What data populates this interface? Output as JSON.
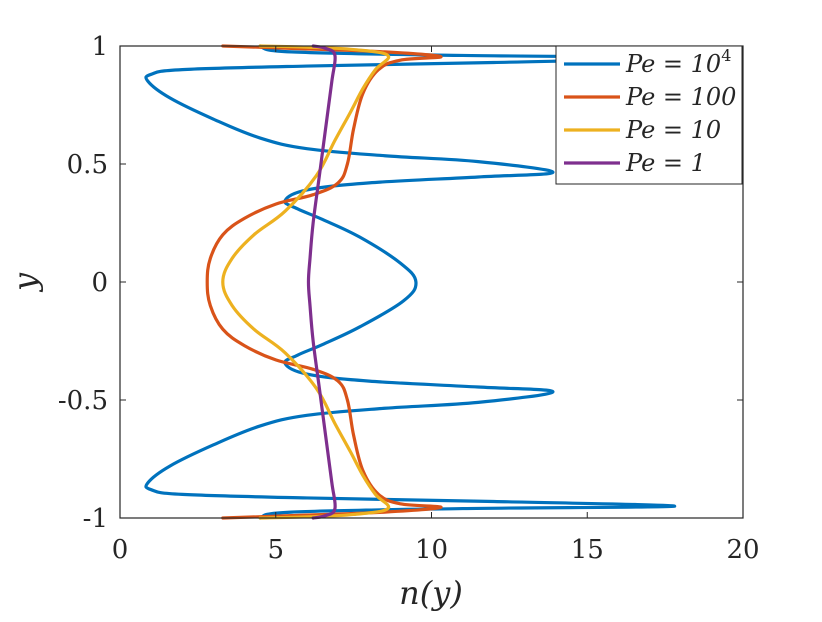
{
  "chart_data": {
    "type": "line",
    "xlabel": "n(y)",
    "ylabel": "y",
    "xlim": [
      0,
      20
    ],
    "ylim": [
      -1,
      1
    ],
    "xticks": [
      0,
      5,
      10,
      15,
      20
    ],
    "yticks": [
      1,
      0.5,
      0,
      -0.5,
      -1
    ],
    "ytick_labels": [
      "1",
      "0.5",
      "0",
      "-0.5",
      "-1"
    ],
    "grid": false,
    "legend_position": "top-right",
    "series": [
      {
        "name": "Pe = 10^4",
        "label_main": "Pe = 10",
        "label_sup": "4",
        "color": "#0072BD",
        "points": [
          [
            4.5,
            1.0
          ],
          [
            5.5,
            0.975
          ],
          [
            11,
            0.96
          ],
          [
            17.8,
            0.95
          ],
          [
            12,
            0.93
          ],
          [
            6,
            0.915
          ],
          [
            2,
            0.9
          ],
          [
            1.0,
            0.88
          ],
          [
            0.9,
            0.85
          ],
          [
            1.6,
            0.78
          ],
          [
            3,
            0.69
          ],
          [
            4.5,
            0.61
          ],
          [
            6,
            0.565
          ],
          [
            8.5,
            0.535
          ],
          [
            11.5,
            0.51
          ],
          [
            13.9,
            0.465
          ],
          [
            11.5,
            0.445
          ],
          [
            8,
            0.42
          ],
          [
            6,
            0.39
          ],
          [
            5.3,
            0.345
          ],
          [
            5.7,
            0.31
          ],
          [
            6.5,
            0.265
          ],
          [
            7.7,
            0.19
          ],
          [
            9.0,
            0.08
          ],
          [
            9.5,
            0.0
          ],
          [
            9.1,
            -0.08
          ],
          [
            7.7,
            -0.19
          ],
          [
            6.5,
            -0.265
          ],
          [
            5.7,
            -0.31
          ],
          [
            5.3,
            -0.345
          ],
          [
            6,
            -0.39
          ],
          [
            8,
            -0.42
          ],
          [
            11.5,
            -0.445
          ],
          [
            13.9,
            -0.465
          ],
          [
            11.5,
            -0.51
          ],
          [
            8.5,
            -0.535
          ],
          [
            6,
            -0.565
          ],
          [
            4.5,
            -0.61
          ],
          [
            3,
            -0.69
          ],
          [
            1.6,
            -0.78
          ],
          [
            0.9,
            -0.85
          ],
          [
            1.0,
            -0.88
          ],
          [
            2,
            -0.9
          ],
          [
            6,
            -0.915
          ],
          [
            12,
            -0.93
          ],
          [
            17.8,
            -0.95
          ],
          [
            11,
            -0.96
          ],
          [
            5.5,
            -0.975
          ],
          [
            4.5,
            -1.0
          ]
        ]
      },
      {
        "name": "Pe = 100",
        "label_main": "Pe = 100",
        "color": "#D95319",
        "points": [
          [
            3.3,
            1.0
          ],
          [
            5.5,
            0.99
          ],
          [
            8.5,
            0.975
          ],
          [
            10.3,
            0.955
          ],
          [
            9,
            0.94
          ],
          [
            8.3,
            0.9
          ],
          [
            7.8,
            0.8
          ],
          [
            7.5,
            0.65
          ],
          [
            7.3,
            0.5
          ],
          [
            7,
            0.42
          ],
          [
            6.2,
            0.37
          ],
          [
            5,
            0.33
          ],
          [
            4,
            0.27
          ],
          [
            3.3,
            0.2
          ],
          [
            2.9,
            0.1
          ],
          [
            2.8,
            0.0
          ],
          [
            2.9,
            -0.1
          ],
          [
            3.3,
            -0.2
          ],
          [
            4,
            -0.27
          ],
          [
            5,
            -0.33
          ],
          [
            6.2,
            -0.37
          ],
          [
            7,
            -0.42
          ],
          [
            7.3,
            -0.5
          ],
          [
            7.5,
            -0.65
          ],
          [
            7.8,
            -0.8
          ],
          [
            8.3,
            -0.9
          ],
          [
            9,
            -0.94
          ],
          [
            10.3,
            -0.955
          ],
          [
            8.5,
            -0.975
          ],
          [
            5.5,
            -0.99
          ],
          [
            3.3,
            -1.0
          ]
        ]
      },
      {
        "name": "Pe = 10",
        "label_main": "Pe = 10",
        "color": "#EDB120",
        "points": [
          [
            4.5,
            1.0
          ],
          [
            6,
            0.995
          ],
          [
            7.5,
            0.985
          ],
          [
            8.6,
            0.96
          ],
          [
            8.2,
            0.9
          ],
          [
            7.8,
            0.82
          ],
          [
            7.4,
            0.72
          ],
          [
            6.9,
            0.6
          ],
          [
            6.3,
            0.45
          ],
          [
            5.3,
            0.3
          ],
          [
            4.3,
            0.2
          ],
          [
            3.6,
            0.1
          ],
          [
            3.3,
            0.0
          ],
          [
            3.6,
            -0.1
          ],
          [
            4.3,
            -0.2
          ],
          [
            5.3,
            -0.3
          ],
          [
            6.3,
            -0.45
          ],
          [
            6.9,
            -0.6
          ],
          [
            7.4,
            -0.72
          ],
          [
            7.8,
            -0.82
          ],
          [
            8.2,
            -0.9
          ],
          [
            8.6,
            -0.96
          ],
          [
            7.5,
            -0.985
          ],
          [
            6,
            -0.995
          ],
          [
            4.5,
            -1.0
          ]
        ]
      },
      {
        "name": "Pe = 1",
        "label_main": "Pe = 1",
        "color": "#7E2F8E",
        "points": [
          [
            6.2,
            1.0
          ],
          [
            6.6,
            0.99
          ],
          [
            6.9,
            0.96
          ],
          [
            6.8,
            0.85
          ],
          [
            6.6,
            0.65
          ],
          [
            6.4,
            0.45
          ],
          [
            6.2,
            0.25
          ],
          [
            6.1,
            0.1
          ],
          [
            6.05,
            0.0
          ],
          [
            6.1,
            -0.1
          ],
          [
            6.2,
            -0.25
          ],
          [
            6.4,
            -0.45
          ],
          [
            6.6,
            -0.65
          ],
          [
            6.8,
            -0.85
          ],
          [
            6.9,
            -0.96
          ],
          [
            6.6,
            -0.99
          ],
          [
            6.2,
            -1.0
          ]
        ]
      }
    ]
  }
}
